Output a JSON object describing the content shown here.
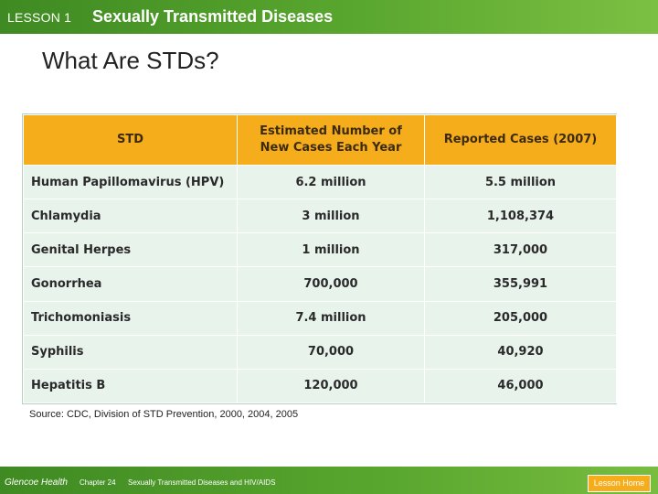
{
  "header": {
    "lesson_label": "LESSON 1",
    "lesson_title": "Sexually Transmitted Diseases"
  },
  "slide_title": "What Are STDs?",
  "table": {
    "headers": [
      "STD",
      "Estimated Number of New Cases Each Year",
      "Reported Cases (2007)"
    ],
    "rows": [
      [
        "Human Papillomavirus (HPV)",
        "6.2 million",
        "5.5 million"
      ],
      [
        "Chlamydia",
        "3 million",
        "1,108,374"
      ],
      [
        "Genital Herpes",
        "1 million",
        "317,000"
      ],
      [
        "Gonorrhea",
        "700,000",
        "355,991"
      ],
      [
        "Trichomoniasis",
        "7.4 million",
        "205,000"
      ],
      [
        "Syphilis",
        "70,000",
        "40,920"
      ],
      [
        "Hepatitis B",
        "120,000",
        "46,000"
      ]
    ]
  },
  "source": "Source: CDC, Division of STD Prevention, 2000, 2004, 2005",
  "footer": {
    "brand": "Glencoe Health",
    "chapter_label": "Chapter 24",
    "chapter_title": "Sexually Transmitted Diseases and HIV/AIDS",
    "lesson_home": "Lesson Home"
  },
  "colors": {
    "header_bar": "#5aa72f",
    "table_header": "#f6ad1c",
    "table_row": "#e8f3ec",
    "button": "#f6ad1c"
  }
}
